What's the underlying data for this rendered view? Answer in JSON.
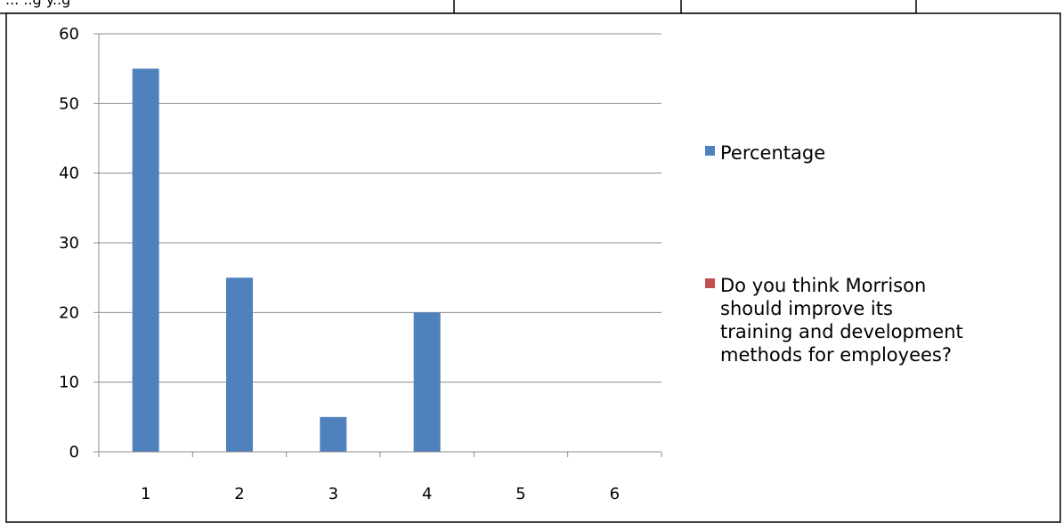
{
  "colors": {
    "series_1": "#4F81BD",
    "series_2": "#C0504D",
    "gridline": "#8C8C8C",
    "axis": "#8C8C8C",
    "frame": "#000000"
  },
  "top_strip": {
    "text": "... ..g y..g"
  },
  "chart_data": {
    "type": "bar",
    "title": "",
    "xlabel": "",
    "ylabel": "",
    "categories": [
      "1",
      "2",
      "3",
      "4",
      "5",
      "6"
    ],
    "ylim": [
      0,
      60
    ],
    "yticks": [
      0,
      10,
      20,
      30,
      40,
      50,
      60
    ],
    "grid": true,
    "legend_position": "right",
    "series": [
      {
        "name": "Percentage",
        "values": [
          55,
          25,
          5,
          20,
          0,
          0
        ]
      },
      {
        "name": "Do you think Morrison should improve its training and development methods for employees?",
        "values": [
          0,
          0,
          0,
          0,
          0,
          0
        ]
      }
    ],
    "legend_lines": [
      [
        "Percentage"
      ],
      [
        "Do you think Morrison",
        "should improve its",
        "training and development",
        "methods for employees?"
      ]
    ]
  }
}
